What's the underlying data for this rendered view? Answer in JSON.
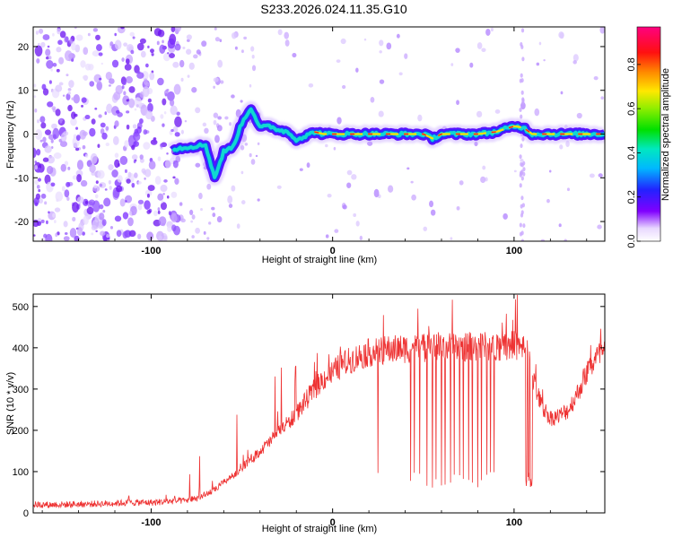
{
  "title": "S233.2026.024.11.35.G10",
  "chart_data": [
    {
      "type": "heatmap",
      "name": "spectrogram",
      "xlabel": "Height of straight line (km)",
      "ylabel": "Frequency (Hz)",
      "xlim": [
        -165,
        150
      ],
      "ylim": [
        -24.5,
        24.5
      ],
      "xticks": [
        -100,
        0,
        100
      ],
      "yticks": [
        -20,
        -10,
        0,
        10,
        20
      ],
      "colorbar": {
        "label": "Normalized spectral amplitude",
        "ticks": [
          0.0,
          0.2,
          0.4,
          0.6,
          0.8
        ],
        "range": [
          0,
          0.97
        ],
        "colormap": "rainbow (white-purple-blue-cyan-green-yellow-red-magenta)"
      },
      "ridge": {
        "description": "approximate centre frequency of the strong signal track (Hz) vs height (km)",
        "x": [
          -88,
          -80,
          -70,
          -65,
          -60,
          -55,
          -50,
          -45,
          -40,
          -35,
          -30,
          -25,
          -20,
          -15,
          -10,
          -5,
          0,
          10,
          20,
          30,
          40,
          50,
          55,
          60,
          70,
          80,
          90,
          100,
          105,
          110,
          120,
          130,
          140,
          150
        ],
        "y": [
          -3.5,
          -3,
          -2.5,
          -10,
          -4,
          -3,
          2.5,
          6,
          1.5,
          1.8,
          1,
          0.5,
          -1.2,
          -0.5,
          0.5,
          0,
          0,
          0,
          0,
          0,
          0,
          0,
          -1,
          0,
          0,
          0,
          0.5,
          1.8,
          1.5,
          0,
          0,
          0,
          0,
          0
        ]
      }
    },
    {
      "type": "line",
      "name": "snr",
      "xlabel": "Height of straight line (km)",
      "ylabel": "SNR (10 * v/v)",
      "xlim": [
        -165,
        150
      ],
      "ylim": [
        0,
        530
      ],
      "xticks": [
        -100,
        0,
        100
      ],
      "yticks": [
        0,
        100,
        200,
        300,
        400,
        500
      ],
      "color": "#ee3333",
      "series": [
        {
          "name": "SNR envelope",
          "x": [
            -165,
            -150,
            -130,
            -110,
            -100,
            -90,
            -80,
            -75,
            -70,
            -65,
            -60,
            -55,
            -50,
            -45,
            -40,
            -35,
            -30,
            -25,
            -20,
            -15,
            -10,
            -5,
            0,
            5,
            10,
            15,
            20,
            25,
            30,
            40,
            50,
            60,
            70,
            80,
            90,
            100,
            105,
            108,
            110,
            115,
            120,
            125,
            130,
            135,
            140,
            145,
            150
          ],
          "y": [
            20,
            20,
            22,
            25,
            25,
            28,
            30,
            35,
            45,
            55,
            75,
            90,
            110,
            130,
            150,
            170,
            200,
            215,
            240,
            270,
            300,
            325,
            340,
            360,
            370,
            380,
            388,
            392,
            395,
            398,
            400,
            402,
            403,
            402,
            405,
            405,
            400,
            380,
            330,
            260,
            230,
            235,
            250,
            290,
            340,
            375,
            390
          ]
        }
      ],
      "dips_x": [
        25,
        43,
        45,
        48,
        52,
        55,
        57,
        60,
        62,
        65,
        67,
        70,
        72,
        75,
        77,
        80,
        82,
        85,
        87,
        89,
        107,
        108,
        109,
        110
      ]
    }
  ]
}
